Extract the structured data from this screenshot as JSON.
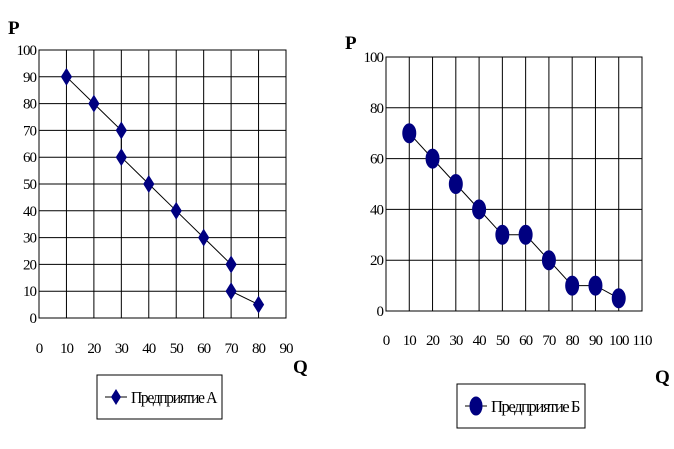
{
  "chart_data": [
    {
      "type": "scatter",
      "title": "",
      "ylabel": "P",
      "xlabel": "Q",
      "xlim": [
        0,
        90
      ],
      "ylim": [
        0,
        100
      ],
      "x_ticks": [
        0,
        10,
        20,
        30,
        40,
        50,
        60,
        70,
        80,
        90
      ],
      "y_ticks": [
        0,
        10,
        20,
        30,
        40,
        50,
        60,
        70,
        80,
        90,
        100
      ],
      "grid": true,
      "legend": "bottom",
      "series": [
        {
          "name": "Предприятие А",
          "marker": "diamond",
          "color": "#000080",
          "connected": true,
          "x": [
            10,
            20,
            30,
            30,
            40,
            50,
            60,
            70,
            70,
            80
          ],
          "y": [
            90,
            80,
            70,
            60,
            50,
            40,
            30,
            20,
            10,
            5
          ]
        }
      ]
    },
    {
      "type": "scatter",
      "title": "",
      "ylabel": "P",
      "xlabel": "Q",
      "xlim": [
        0,
        110
      ],
      "ylim": [
        0,
        100
      ],
      "x_ticks": [
        0,
        10,
        20,
        30,
        40,
        50,
        60,
        70,
        80,
        90,
        100,
        110
      ],
      "y_ticks": [
        0,
        20,
        40,
        60,
        80,
        100
      ],
      "grid": true,
      "legend": "bottom",
      "series": [
        {
          "name": "Предприятие Б",
          "marker": "ellipse",
          "color": "#000080",
          "connected": true,
          "x": [
            10,
            20,
            30,
            40,
            50,
            60,
            70,
            80,
            90,
            100
          ],
          "y": [
            70,
            60,
            50,
            40,
            30,
            30,
            20,
            10,
            10,
            5
          ]
        }
      ]
    }
  ]
}
